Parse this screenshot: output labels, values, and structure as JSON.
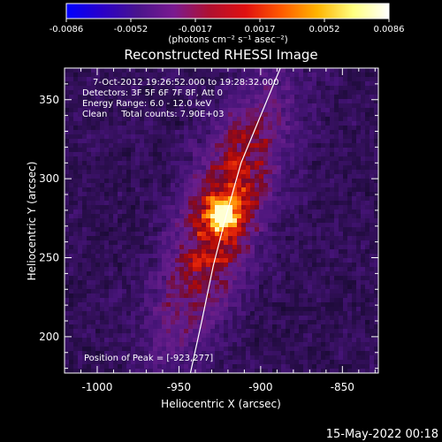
{
  "colorbar": {
    "ticks": [
      "-0.0086",
      "-0.0052",
      "-0.0017",
      "0.0017",
      "0.0052",
      "0.0086"
    ],
    "unit_label": "(photons cm⁻² s⁻¹ asec⁻²)",
    "colors": [
      "#0000ff",
      "#2a00c8",
      "#4a148c",
      "#7a1a90",
      "#b01030",
      "#e01010",
      "#ff5a00",
      "#ffb400",
      "#ffff80",
      "#ffffff"
    ]
  },
  "chart_data": {
    "type": "heatmap",
    "title": "Reconstructed RHESSI Image",
    "xlabel": "Heliocentric X (arcsec)",
    "ylabel": "Heliocentric Y (arcsec)",
    "xlim": [
      -1020,
      -828
    ],
    "ylim": [
      177,
      370
    ],
    "xticks": [
      -1000,
      -950,
      -900,
      -850
    ],
    "yticks": [
      200,
      250,
      300,
      350
    ],
    "xtick_labels": [
      "-1000",
      "-950",
      "-900",
      "-850"
    ],
    "ytick_labels": [
      "200",
      "250",
      "300",
      "350"
    ],
    "peak": [
      -923,
      277
    ],
    "source": {
      "sx": 16,
      "sy": 55,
      "angle_deg": 70
    },
    "limb_curve": [
      [
        -943,
        177
      ],
      [
        -936,
        210
      ],
      [
        -929,
        245
      ],
      [
        -921,
        277
      ],
      [
        -912,
        310
      ],
      [
        -900,
        340
      ],
      [
        -888,
        370
      ]
    ],
    "annotations": [
      "7-Oct-2012 19:26:52.000 to 19:28:32.000",
      "Detectors: 3F 5F 6F 7F 8F, Att 0",
      "Energy Range: 6.0 - 12.0 keV",
      "Clean     Total counts: 7.90E+03"
    ],
    "peak_label": "Position of Peak = [-923,277]"
  },
  "footer": {
    "timestamp": "15-May-2022 00:18"
  }
}
